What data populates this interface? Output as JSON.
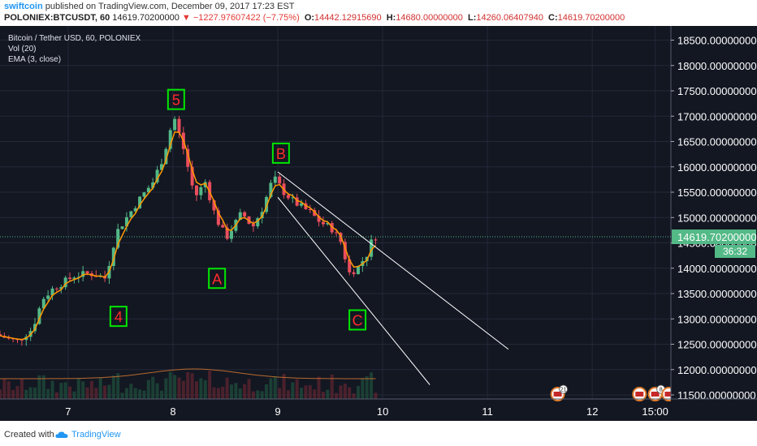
{
  "header": {
    "author": "swiftcoin",
    "published_text": "published on TradingView.com, December 09, 2017 17:23 EST",
    "symbol": "POLONIEX:BTCUSDT, 60",
    "last": "14619.70200000",
    "change": "▼ −1227.97607422 (−7.75%)",
    "open_label": "O:",
    "open": "14442.12915690",
    "high_label": "H:",
    "high": "14680.00000000",
    "low_label": "L:",
    "low": "14260.06407940",
    "close_label": "C:",
    "close": "14619.70200000"
  },
  "legend": {
    "title": "Bitcoin / Tether USD, 60, POLONIEX",
    "vol": "Vol (20)",
    "ema": "EMA (3, close)"
  },
  "price_tag": {
    "price": "14619.70200000",
    "countdown": "36:32"
  },
  "footer": {
    "created_with": "Created with",
    "brand": "TradingView"
  },
  "colors": {
    "background": "#131722",
    "up": "#53b987",
    "down": "#eb4d5c",
    "ema": "#ff9800",
    "wave_label": "#ff2a2a",
    "wave_box": "#00e600",
    "trendline": "#ffffff",
    "axis_text": "#ffffff",
    "price_tag": "#53b987"
  },
  "chart_data": {
    "type": "candlestick",
    "y_axis": {
      "ticks": [
        "18500.00000000",
        "18000.00000000",
        "17500.00000000",
        "17000.00000000",
        "16500.00000000",
        "16000.00000000",
        "15500.00000000",
        "15000.00000000",
        "14500.00000000",
        "14000.00000000",
        "13500.00000000",
        "13000.00000000",
        "12500.00000000",
        "12000.00000000",
        "11500.00000000"
      ],
      "tick_values": [
        18500,
        18000,
        17500,
        17000,
        16500,
        16000,
        15500,
        15000,
        14500,
        14000,
        13500,
        13000,
        12500,
        12000,
        11500
      ],
      "ylim": [
        11420,
        18780
      ]
    },
    "x_axis": {
      "ticks": [
        "7",
        "8",
        "9",
        "10",
        "11",
        "12",
        "15:00"
      ],
      "tick_values": [
        7,
        8,
        9,
        10,
        11,
        12,
        12.6
      ],
      "xlim": [
        6.35,
        12.75
      ]
    },
    "candles_anchors": [
      {
        "t": 6.35,
        "p": 12700
      },
      {
        "t": 6.55,
        "p": 12550
      },
      {
        "t": 6.7,
        "p": 12800
      },
      {
        "t": 6.8,
        "p": 13400
      },
      {
        "t": 6.9,
        "p": 13600
      },
      {
        "t": 7.1,
        "p": 13850
      },
      {
        "t": 7.25,
        "p": 13900
      },
      {
        "t": 7.4,
        "p": 13800
      },
      {
        "t": 7.5,
        "p": 14700
      },
      {
        "t": 7.6,
        "p": 15000
      },
      {
        "t": 7.7,
        "p": 15300
      },
      {
        "t": 7.85,
        "p": 15700
      },
      {
        "t": 7.95,
        "p": 16200
      },
      {
        "t": 8.05,
        "p": 17000
      },
      {
        "t": 8.15,
        "p": 16300
      },
      {
        "t": 8.25,
        "p": 15400
      },
      {
        "t": 8.35,
        "p": 15700
      },
      {
        "t": 8.45,
        "p": 15000
      },
      {
        "t": 8.55,
        "p": 14600
      },
      {
        "t": 8.7,
        "p": 15100
      },
      {
        "t": 8.8,
        "p": 14800
      },
      {
        "t": 8.9,
        "p": 15200
      },
      {
        "t": 9.0,
        "p": 15800
      },
      {
        "t": 9.1,
        "p": 15500
      },
      {
        "t": 9.2,
        "p": 15300
      },
      {
        "t": 9.35,
        "p": 15100
      },
      {
        "t": 9.45,
        "p": 14900
      },
      {
        "t": 9.55,
        "p": 14800
      },
      {
        "t": 9.65,
        "p": 14500
      },
      {
        "t": 9.72,
        "p": 13900
      },
      {
        "t": 9.8,
        "p": 14000
      },
      {
        "t": 9.9,
        "p": 14300
      },
      {
        "t": 9.95,
        "p": 14620
      }
    ],
    "wave_labels": [
      {
        "text": "5",
        "t": 8.03,
        "p": 17330
      },
      {
        "text": "B",
        "t": 9.03,
        "p": 16270
      },
      {
        "text": "A",
        "t": 8.42,
        "p": 13800
      },
      {
        "text": "4",
        "t": 7.48,
        "p": 13050
      },
      {
        "text": "C",
        "t": 9.76,
        "p": 12980
      }
    ],
    "trendlines": [
      {
        "t1": 9.0,
        "p1": 15900,
        "t2": 11.2,
        "p2": 12400
      },
      {
        "t1": 9.0,
        "p1": 15400,
        "t2": 10.45,
        "p2": 11700
      }
    ],
    "events": [
      {
        "label": "21",
        "t": 11.67
      },
      {
        "label": "",
        "t": 12.45
      },
      {
        "label": "8",
        "t": 12.6
      },
      {
        "label": "",
        "t": 12.73
      }
    ]
  }
}
